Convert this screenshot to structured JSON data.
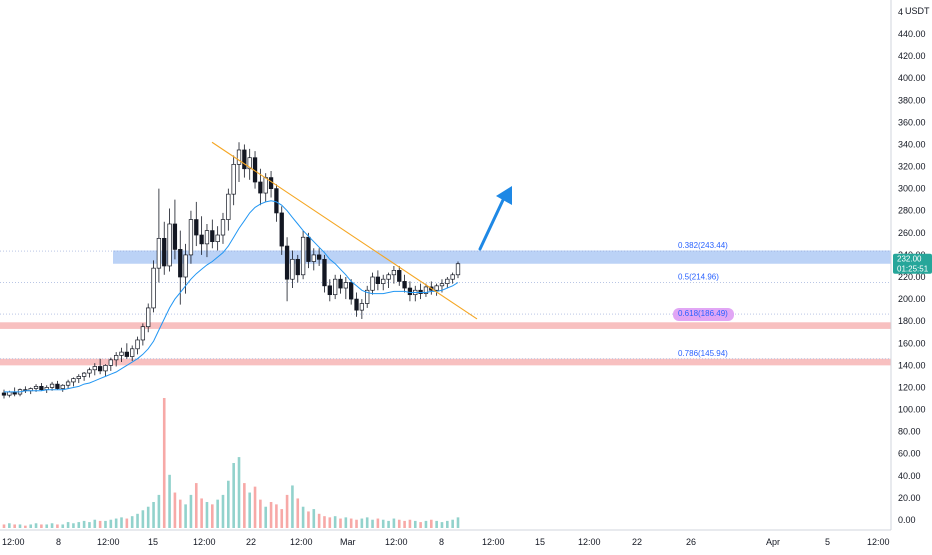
{
  "axis": {
    "currency": "USDT",
    "currency_prefix": "4",
    "y_ticks": [
      0,
      20,
      40,
      60,
      80,
      100,
      120,
      140,
      160,
      180,
      200,
      220,
      240,
      260,
      280,
      300,
      320,
      340,
      360,
      380,
      400,
      420,
      440
    ],
    "y_tick_labels": [
      "0.00",
      "20.00",
      "40.00",
      "60.00",
      "80.00",
      "100.00",
      "120.00",
      "140.00",
      "160.00",
      "180.00",
      "200.00",
      "220.00",
      "240.00",
      "260.00",
      "280.00",
      "300.00",
      "320.00",
      "340.00",
      "360.00",
      "380.00",
      "400.00",
      "420.00",
      "440.00"
    ],
    "x_tick_labels": [
      "12:00",
      "8",
      "12:00",
      "15",
      "12:00",
      "22",
      "12:00",
      "Mar",
      "12:00",
      "8",
      "12:00",
      "15",
      "12:00",
      "22",
      "26",
      "Apr",
      "5",
      "12:00"
    ]
  },
  "price_tag": {
    "price": "232.00",
    "countdown": "01:25:51",
    "value": 232,
    "color": "#26a69a"
  },
  "fib_levels": [
    {
      "label": "0.382(243.44)",
      "value": 243.44
    },
    {
      "label": "0.5(214.96)",
      "value": 214.96
    },
    {
      "label": "0.618(186.49)",
      "value": 186.49,
      "highlight": "#e1a6f5"
    },
    {
      "label": "0.786(145.94)",
      "value": 145.94
    }
  ],
  "zones": [
    {
      "from": 232,
      "to": 244,
      "color": "#aac7f4"
    },
    {
      "from": 173,
      "to": 179,
      "color": "#f7b9b9"
    },
    {
      "from": 140,
      "to": 146,
      "color": "#f7b9b9"
    }
  ],
  "colors": {
    "up": "#26a69a",
    "down": "#ef5350",
    "wick": "#131722",
    "ma": "#2196f3",
    "trendline": "#f5a623",
    "arrow": "#1e88e5",
    "grid": "#d8dbe2"
  },
  "chart_data": {
    "type": "candlestick",
    "price_range": [
      -10,
      455
    ],
    "candles": [
      {
        "o": 115,
        "h": 118,
        "l": 110,
        "c": 113
      },
      {
        "o": 113,
        "h": 117,
        "l": 111,
        "c": 116
      },
      {
        "o": 116,
        "h": 120,
        "l": 112,
        "c": 114
      },
      {
        "o": 114,
        "h": 119,
        "l": 112,
        "c": 118
      },
      {
        "o": 118,
        "h": 121,
        "l": 115,
        "c": 117
      },
      {
        "o": 117,
        "h": 120,
        "l": 114,
        "c": 119
      },
      {
        "o": 119,
        "h": 123,
        "l": 116,
        "c": 121
      },
      {
        "o": 121,
        "h": 124,
        "l": 117,
        "c": 118
      },
      {
        "o": 118,
        "h": 122,
        "l": 115,
        "c": 120
      },
      {
        "o": 120,
        "h": 125,
        "l": 117,
        "c": 123
      },
      {
        "o": 123,
        "h": 126,
        "l": 118,
        "c": 119
      },
      {
        "o": 119,
        "h": 123,
        "l": 116,
        "c": 122
      },
      {
        "o": 122,
        "h": 127,
        "l": 119,
        "c": 125
      },
      {
        "o": 125,
        "h": 129,
        "l": 121,
        "c": 128
      },
      {
        "o": 128,
        "h": 132,
        "l": 124,
        "c": 130
      },
      {
        "o": 130,
        "h": 134,
        "l": 126,
        "c": 133
      },
      {
        "o": 133,
        "h": 138,
        "l": 129,
        "c": 136
      },
      {
        "o": 136,
        "h": 142,
        "l": 131,
        "c": 139
      },
      {
        "o": 139,
        "h": 146,
        "l": 132,
        "c": 135
      },
      {
        "o": 135,
        "h": 141,
        "l": 130,
        "c": 140
      },
      {
        "o": 140,
        "h": 147,
        "l": 135,
        "c": 145
      },
      {
        "o": 145,
        "h": 152,
        "l": 139,
        "c": 149
      },
      {
        "o": 149,
        "h": 156,
        "l": 143,
        "c": 152
      },
      {
        "o": 152,
        "h": 160,
        "l": 146,
        "c": 148
      },
      {
        "o": 148,
        "h": 158,
        "l": 144,
        "c": 155
      },
      {
        "o": 155,
        "h": 166,
        "l": 150,
        "c": 163
      },
      {
        "o": 163,
        "h": 178,
        "l": 158,
        "c": 175
      },
      {
        "o": 175,
        "h": 196,
        "l": 170,
        "c": 192
      },
      {
        "o": 192,
        "h": 235,
        "l": 188,
        "c": 228
      },
      {
        "o": 228,
        "h": 300,
        "l": 215,
        "c": 255
      },
      {
        "o": 255,
        "h": 270,
        "l": 222,
        "c": 230
      },
      {
        "o": 230,
        "h": 282,
        "l": 225,
        "c": 268
      },
      {
        "o": 268,
        "h": 290,
        "l": 236,
        "c": 245
      },
      {
        "o": 245,
        "h": 262,
        "l": 195,
        "c": 220
      },
      {
        "o": 220,
        "h": 250,
        "l": 205,
        "c": 240
      },
      {
        "o": 240,
        "h": 280,
        "l": 232,
        "c": 272
      },
      {
        "o": 272,
        "h": 288,
        "l": 248,
        "c": 258
      },
      {
        "o": 258,
        "h": 275,
        "l": 240,
        "c": 250
      },
      {
        "o": 250,
        "h": 268,
        "l": 238,
        "c": 262
      },
      {
        "o": 262,
        "h": 272,
        "l": 246,
        "c": 252
      },
      {
        "o": 252,
        "h": 266,
        "l": 244,
        "c": 258
      },
      {
        "o": 258,
        "h": 278,
        "l": 250,
        "c": 272
      },
      {
        "o": 272,
        "h": 300,
        "l": 262,
        "c": 295
      },
      {
        "o": 295,
        "h": 330,
        "l": 285,
        "c": 322
      },
      {
        "o": 322,
        "h": 342,
        "l": 306,
        "c": 335
      },
      {
        "o": 335,
        "h": 340,
        "l": 310,
        "c": 318
      },
      {
        "o": 318,
        "h": 336,
        "l": 308,
        "c": 328
      },
      {
        "o": 328,
        "h": 334,
        "l": 300,
        "c": 306
      },
      {
        "o": 306,
        "h": 318,
        "l": 285,
        "c": 296
      },
      {
        "o": 296,
        "h": 314,
        "l": 288,
        "c": 310
      },
      {
        "o": 310,
        "h": 316,
        "l": 292,
        "c": 300
      },
      {
        "o": 300,
        "h": 304,
        "l": 270,
        "c": 278
      },
      {
        "o": 278,
        "h": 284,
        "l": 240,
        "c": 248
      },
      {
        "o": 248,
        "h": 256,
        "l": 198,
        "c": 218
      },
      {
        "o": 218,
        "h": 244,
        "l": 210,
        "c": 236
      },
      {
        "o": 236,
        "h": 240,
        "l": 215,
        "c": 222
      },
      {
        "o": 222,
        "h": 262,
        "l": 218,
        "c": 256
      },
      {
        "o": 256,
        "h": 260,
        "l": 228,
        "c": 234
      },
      {
        "o": 234,
        "h": 246,
        "l": 226,
        "c": 240
      },
      {
        "o": 240,
        "h": 246,
        "l": 230,
        "c": 236
      },
      {
        "o": 236,
        "h": 240,
        "l": 206,
        "c": 212
      },
      {
        "o": 212,
        "h": 218,
        "l": 198,
        "c": 204
      },
      {
        "o": 204,
        "h": 222,
        "l": 200,
        "c": 218
      },
      {
        "o": 218,
        "h": 222,
        "l": 205,
        "c": 210
      },
      {
        "o": 210,
        "h": 220,
        "l": 200,
        "c": 215
      },
      {
        "o": 215,
        "h": 218,
        "l": 195,
        "c": 200
      },
      {
        "o": 200,
        "h": 206,
        "l": 184,
        "c": 190
      },
      {
        "o": 190,
        "h": 200,
        "l": 182,
        "c": 196
      },
      {
        "o": 196,
        "h": 212,
        "l": 192,
        "c": 208
      },
      {
        "o": 208,
        "h": 224,
        "l": 204,
        "c": 220
      },
      {
        "o": 220,
        "h": 226,
        "l": 208,
        "c": 214
      },
      {
        "o": 214,
        "h": 222,
        "l": 208,
        "c": 218
      },
      {
        "o": 218,
        "h": 224,
        "l": 210,
        "c": 222
      },
      {
        "o": 222,
        "h": 230,
        "l": 214,
        "c": 226
      },
      {
        "o": 226,
        "h": 230,
        "l": 212,
        "c": 216
      },
      {
        "o": 216,
        "h": 222,
        "l": 206,
        "c": 210
      },
      {
        "o": 210,
        "h": 216,
        "l": 198,
        "c": 204
      },
      {
        "o": 204,
        "h": 212,
        "l": 198,
        "c": 208
      },
      {
        "o": 208,
        "h": 214,
        "l": 200,
        "c": 205
      },
      {
        "o": 205,
        "h": 214,
        "l": 202,
        "c": 211
      },
      {
        "o": 211,
        "h": 216,
        "l": 204,
        "c": 208
      },
      {
        "o": 208,
        "h": 214,
        "l": 203,
        "c": 212
      },
      {
        "o": 212,
        "h": 218,
        "l": 206,
        "c": 214
      },
      {
        "o": 214,
        "h": 220,
        "l": 210,
        "c": 218
      },
      {
        "o": 218,
        "h": 224,
        "l": 214,
        "c": 222
      },
      {
        "o": 222,
        "h": 234,
        "l": 219,
        "c": 232
      }
    ],
    "ma_series": [
      116,
      116,
      116,
      116,
      117,
      117,
      117,
      117,
      118,
      118,
      118,
      118,
      119,
      120,
      121,
      123,
      124,
      126,
      128,
      130,
      132,
      134,
      137,
      140,
      143,
      146,
      150,
      155,
      162,
      172,
      182,
      192,
      200,
      206,
      212,
      218,
      223,
      227,
      231,
      234,
      238,
      242,
      248,
      256,
      264,
      271,
      278,
      283,
      286,
      288,
      289,
      288,
      285,
      280,
      274,
      268,
      262,
      257,
      252,
      247,
      242,
      236,
      232,
      227,
      222,
      216,
      212,
      208,
      206,
      205,
      205,
      205,
      206,
      207,
      207,
      207,
      206,
      206,
      206,
      206,
      207,
      207,
      208,
      210,
      212,
      215
    ],
    "volumes": [
      3,
      4,
      3,
      3,
      2,
      3,
      4,
      3,
      3,
      4,
      3,
      3,
      5,
      4,
      5,
      6,
      5,
      7,
      6,
      6,
      7,
      8,
      9,
      8,
      10,
      12,
      15,
      18,
      22,
      28,
      110,
      45,
      30,
      24,
      20,
      28,
      38,
      25,
      22,
      20,
      24,
      28,
      40,
      55,
      60,
      38,
      30,
      35,
      24,
      18,
      22,
      20,
      16,
      28,
      36,
      25,
      18,
      14,
      16,
      12,
      10,
      9,
      10,
      8,
      9,
      8,
      7,
      8,
      9,
      7,
      8,
      7,
      6,
      8,
      7,
      6,
      7,
      6,
      5,
      6,
      7,
      6,
      5,
      6,
      7,
      9
    ]
  }
}
